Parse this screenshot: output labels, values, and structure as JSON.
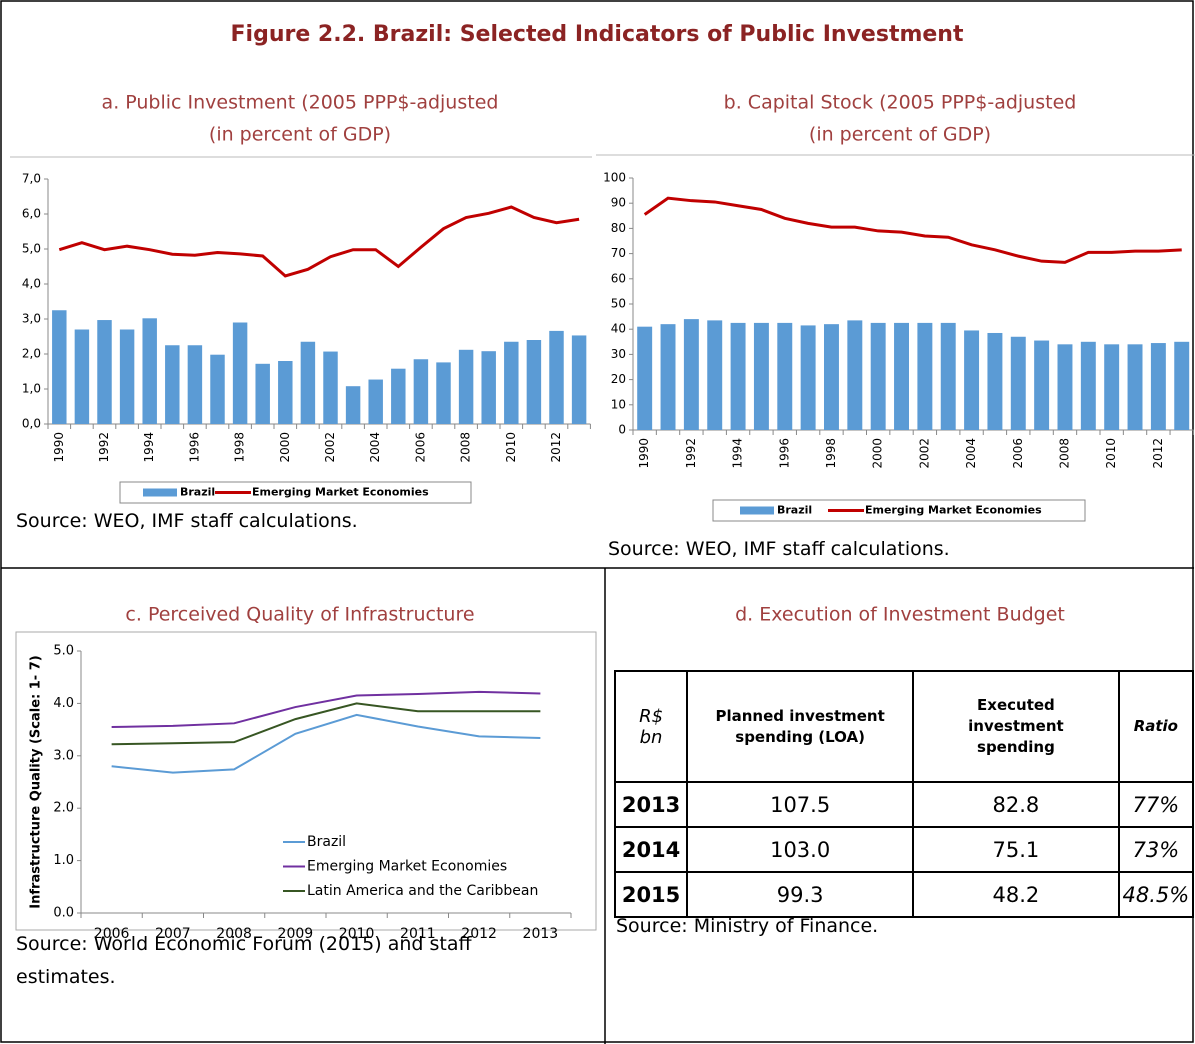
{
  "title": "Figure 2.2. Brazil: Selected Indicators of Public Investment",
  "chart_data": [
    {
      "type": "bar",
      "title": [
        "a. Public Investment (2005 PPP$-adjusted",
        "(in percent of GDP)"
      ],
      "categories": [
        "1990",
        null,
        "1992",
        null,
        "1994",
        null,
        "1996",
        null,
        "1998",
        null,
        "2000",
        null,
        "2002",
        null,
        "2004",
        null,
        "2006",
        null,
        "2008",
        null,
        "2010",
        null,
        "2012",
        null
      ],
      "series": [
        {
          "name": "Brazil",
          "type": "bar",
          "color": "#5b9bd5",
          "values": [
            3.25,
            2.7,
            2.97,
            2.7,
            3.02,
            2.25,
            2.25,
            1.98,
            2.9,
            1.72,
            1.8,
            2.35,
            2.07,
            1.08,
            1.27,
            1.58,
            1.85,
            1.76,
            2.12,
            2.08,
            2.35,
            2.4,
            2.66,
            2.53
          ]
        },
        {
          "name": "Emerging Market Economies",
          "type": "line",
          "color": "#c00000",
          "values": [
            4.98,
            5.18,
            4.98,
            5.08,
            4.98,
            4.85,
            4.82,
            4.9,
            4.86,
            4.8,
            4.23,
            4.42,
            4.78,
            4.98,
            4.98,
            4.5,
            5.05,
            5.58,
            5.9,
            6.02,
            6.2,
            5.9,
            5.75,
            5.85
          ]
        }
      ],
      "ylim": [
        0,
        7
      ],
      "yticks": [
        {
          "value": 0,
          "label": "0,0"
        },
        {
          "value": 1,
          "label": "1,0"
        },
        {
          "value": 2,
          "label": "2,0"
        },
        {
          "value": 3,
          "label": "3,0"
        },
        {
          "value": 4,
          "label": "4,0"
        },
        {
          "value": 5,
          "label": "5,0"
        },
        {
          "value": 6,
          "label": "6,0"
        },
        {
          "value": 7,
          "label": "7,0"
        }
      ],
      "source": "Source: WEO, IMF staff calculations."
    },
    {
      "type": "bar",
      "title": [
        "b. Capital Stock (2005 PPP$-adjusted",
        "(in percent of GDP)"
      ],
      "categories": [
        "1990",
        null,
        "1992",
        null,
        "1994",
        null,
        "1996",
        null,
        "1998",
        null,
        "2000",
        null,
        "2002",
        null,
        "2004",
        null,
        "2006",
        null,
        "2008",
        null,
        "2010",
        null,
        "2012",
        null
      ],
      "series": [
        {
          "name": "Brazil",
          "type": "bar",
          "color": "#5b9bd5",
          "values": [
            41,
            42,
            44,
            43.5,
            42.5,
            42.5,
            42.5,
            41.5,
            42,
            43.5,
            42.5,
            42.5,
            42.5,
            42.5,
            39.5,
            38.5,
            37,
            35.5,
            34,
            35,
            34,
            34,
            34.5,
            35
          ]
        },
        {
          "name": "Emerging Market Economies",
          "type": "line",
          "color": "#c00000",
          "values": [
            85.5,
            92,
            91,
            90.5,
            89,
            87.5,
            84,
            82,
            80.5,
            80.5,
            79,
            78.5,
            77,
            76.5,
            73.5,
            71.5,
            69,
            67,
            66.5,
            70.5,
            70.5,
            71,
            71,
            71.5
          ]
        }
      ],
      "ylim": [
        0,
        100
      ],
      "yticks": [
        0,
        10,
        20,
        30,
        40,
        50,
        60,
        70,
        80,
        90,
        100
      ],
      "source": "Source: WEO, IMF staff calculations."
    },
    {
      "type": "line",
      "title": [
        "c. Perceived Quality of Infrastructure"
      ],
      "y_label": "Infrastructure Quality (Scale: 1- 7)",
      "categories": [
        "2006",
        "2007",
        "2008",
        "2009",
        "2010",
        "2011",
        "2012",
        "2013"
      ],
      "series": [
        {
          "name": "Brazil",
          "color": "#5b9bd5",
          "values": [
            2.8,
            2.68,
            2.74,
            3.42,
            3.78,
            3.56,
            3.37,
            3.34
          ]
        },
        {
          "name": "Emerging Market Economies",
          "color": "#7030a0",
          "values": [
            3.55,
            3.57,
            3.62,
            3.93,
            4.15,
            4.18,
            4.22,
            4.19
          ]
        },
        {
          "name": "Latin America and the Caribbean",
          "color": "#375623",
          "values": [
            3.22,
            3.24,
            3.26,
            3.7,
            4.0,
            3.85,
            3.85,
            3.85
          ]
        }
      ],
      "ylim": [
        0,
        5
      ],
      "yticks": [
        {
          "value": 0,
          "label": "0.0"
        },
        {
          "value": 1,
          "label": "1.0"
        },
        {
          "value": 2,
          "label": "2.0"
        },
        {
          "value": 3,
          "label": "3.0"
        },
        {
          "value": 4,
          "label": "4.0"
        },
        {
          "value": 5,
          "label": "5.0"
        }
      ],
      "source": "Source: World Economic Forum (2015) and staff estimates."
    }
  ],
  "table": {
    "title": "d. Execution of Investment Budget",
    "header": [
      "R$ bn",
      "Planned investment spending (LOA)",
      "Executed investment spending",
      "Ratio"
    ],
    "rows": [
      [
        "2013",
        "107.5",
        "82.8",
        "77%"
      ],
      [
        "2014",
        "103.0",
        "75.1",
        "73%"
      ],
      [
        "2015",
        "99.3",
        "48.2",
        "48.5%"
      ]
    ],
    "source": "Source: Ministry of Finance."
  }
}
